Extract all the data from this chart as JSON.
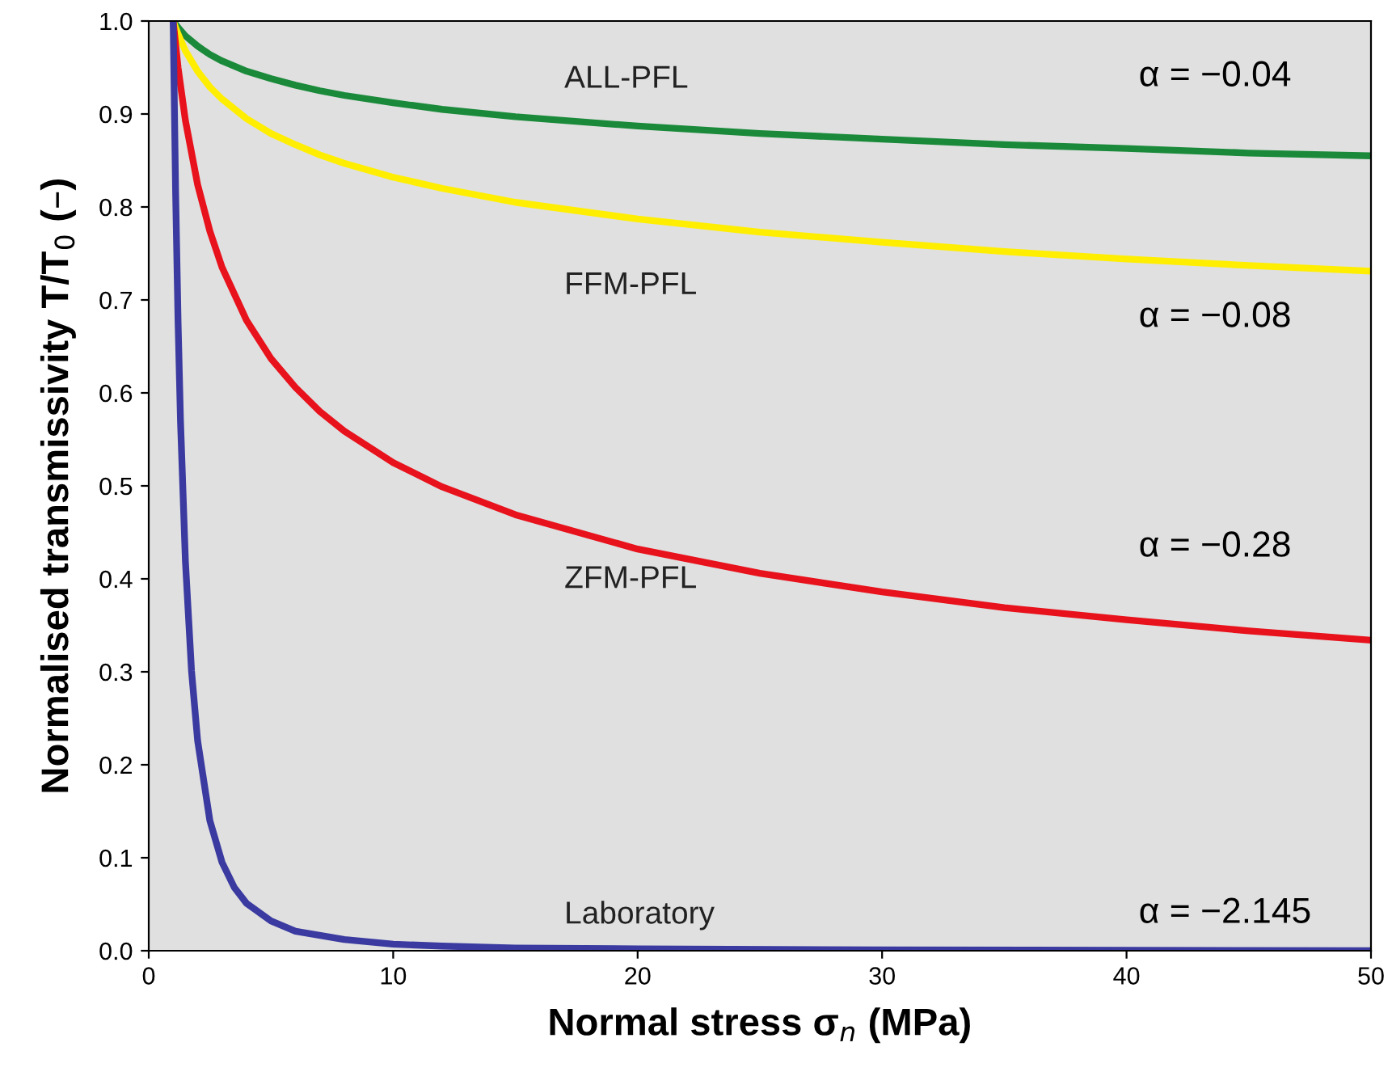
{
  "chart_data": {
    "type": "line",
    "xlabel": "Normal stress σ$_{n}$ (MPa)",
    "ylabel": "Normalised transmissivity T/T$_{0}$ (–)",
    "xlim": [
      0,
      50
    ],
    "ylim": [
      0,
      1
    ],
    "xticks": [
      0,
      10,
      20,
      30,
      40,
      50
    ],
    "yticks": [
      {
        "value": 0,
        "label": "0.0"
      },
      {
        "value": 0.1,
        "label": "0.1"
      },
      {
        "value": 0.2,
        "label": "0.2"
      },
      {
        "value": 0.3,
        "label": "0.3"
      },
      {
        "value": 0.4,
        "label": "0.4"
      },
      {
        "value": 0.5,
        "label": "0.5"
      },
      {
        "value": 0.6,
        "label": "0.6"
      },
      {
        "value": 0.7,
        "label": "0.7"
      },
      {
        "value": 0.8,
        "label": "0.8"
      },
      {
        "value": 0.9,
        "label": "0.9"
      },
      {
        "value": 1,
        "label": "1.0"
      }
    ],
    "grid": false,
    "legend": false,
    "marker": "none",
    "line_style": "solid",
    "series": [
      {
        "name": "ALL-PFL",
        "color": "#1a8a3a",
        "x": [
          1,
          1.2,
          1.5,
          2,
          2.5,
          3,
          4,
          5,
          6,
          7,
          8,
          10,
          12,
          15,
          20,
          25,
          30,
          35,
          40,
          45,
          50
        ],
        "values": [
          1,
          0.993,
          0.984,
          0.973,
          0.964,
          0.957,
          0.946,
          0.938,
          0.931,
          0.925,
          0.92,
          0.912,
          0.905,
          0.897,
          0.887,
          0.879,
          0.873,
          0.867,
          0.863,
          0.858,
          0.855
        ]
      },
      {
        "name": "FFM-PFL",
        "color": "#ffee00",
        "x": [
          1,
          1.2,
          1.5,
          2,
          2.5,
          3,
          4,
          5,
          6,
          7,
          8,
          10,
          12,
          15,
          20,
          25,
          30,
          35,
          40,
          45,
          50
        ],
        "values": [
          1,
          0.986,
          0.968,
          0.946,
          0.929,
          0.916,
          0.895,
          0.879,
          0.867,
          0.856,
          0.847,
          0.832,
          0.82,
          0.805,
          0.787,
          0.773,
          0.762,
          0.752,
          0.744,
          0.737,
          0.731
        ]
      },
      {
        "name": "ZFM-PFL",
        "color": "#e8121c",
        "x": [
          1,
          1.2,
          1.5,
          2,
          2.5,
          3,
          4,
          5,
          6,
          7,
          8,
          10,
          12,
          15,
          20,
          25,
          30,
          35,
          40,
          45,
          50
        ],
        "values": [
          1,
          0.95,
          0.893,
          0.824,
          0.774,
          0.735,
          0.678,
          0.637,
          0.606,
          0.58,
          0.559,
          0.525,
          0.499,
          0.469,
          0.432,
          0.406,
          0.386,
          0.369,
          0.356,
          0.344,
          0.334
        ]
      },
      {
        "name": "Laboratory",
        "color": "#3a3aa0",
        "x": [
          1,
          1.1,
          1.2,
          1.3,
          1.5,
          1.75,
          2,
          2.5,
          3,
          3.5,
          4,
          5,
          6,
          8,
          10,
          12,
          15,
          20,
          30,
          50
        ],
        "values": [
          1,
          0.815,
          0.676,
          0.569,
          0.419,
          0.301,
          0.226,
          0.14,
          0.095,
          0.068,
          0.051,
          0.032,
          0.021,
          0.012,
          0.007,
          0.005,
          0.003,
          0.002,
          0.001,
          0.0
        ]
      }
    ],
    "annotations": [
      "α = −0.04",
      "α = −0.08",
      "α = −0.28",
      "α = −2.145"
    ]
  }
}
